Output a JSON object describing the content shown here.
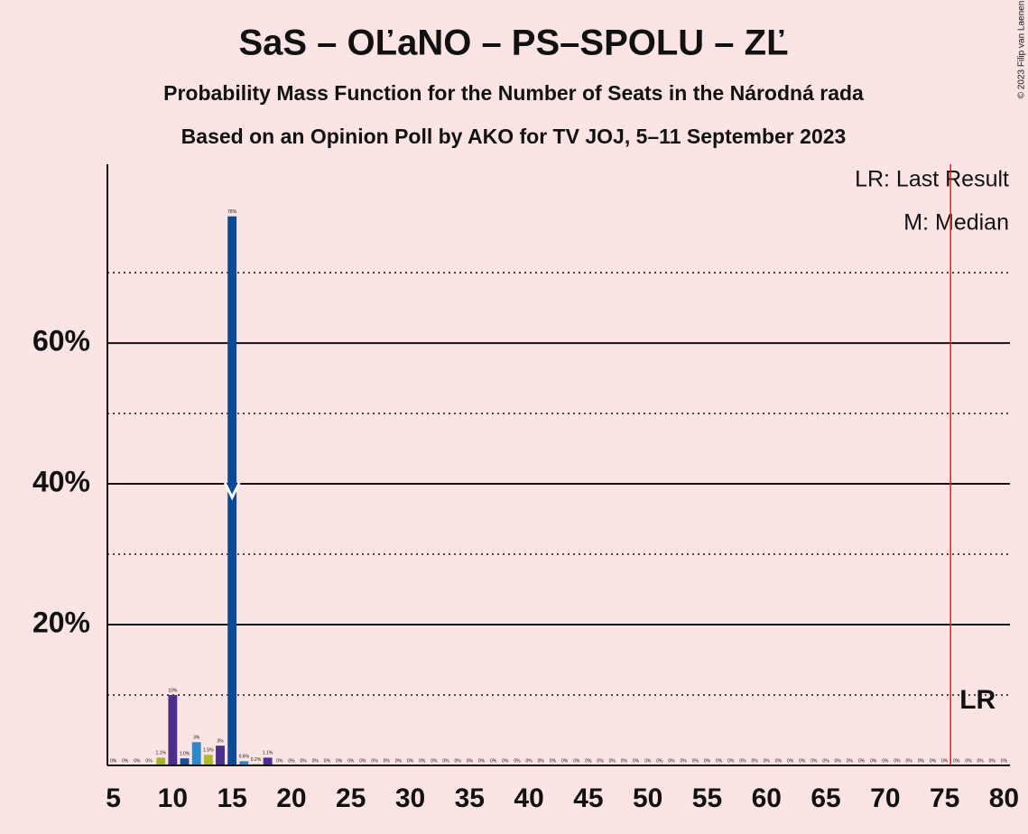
{
  "chart_data": {
    "type": "bar",
    "title": "SaS – OĽaNO – PS–SPOLU – ZĽ",
    "subtitle": "Probability Mass Function for the Number of Seats in the Národná rada",
    "subtitle2": "Based on an Opinion Poll by AKO for TV JOJ, 5–11 September 2023",
    "copyright": "© 2023 Filip van Laenen",
    "legend": [
      "LR: Last Result",
      "M: Median"
    ],
    "lr_label": "LR",
    "x": [
      5,
      6,
      7,
      8,
      9,
      10,
      11,
      12,
      13,
      14,
      15,
      16,
      17,
      18,
      19,
      20,
      21,
      22,
      23,
      24,
      25,
      26,
      27,
      28,
      29,
      30,
      31,
      32,
      33,
      34,
      35,
      36,
      37,
      38,
      39,
      40,
      41,
      42,
      43,
      44,
      45,
      46,
      47,
      48,
      49,
      50,
      51,
      52,
      53,
      54,
      55,
      56,
      57,
      58,
      59,
      60,
      61,
      62,
      63,
      64,
      65,
      66,
      67,
      68,
      69,
      70,
      71,
      72,
      73,
      74,
      75,
      76,
      77,
      78,
      79,
      80
    ],
    "values": [
      0,
      0,
      0,
      0,
      1.1,
      10,
      1.0,
      3.3,
      1.5,
      2.8,
      78,
      0.6,
      0.2,
      1.1,
      0,
      0,
      0,
      0,
      0,
      0,
      0,
      0,
      0,
      0,
      0,
      0,
      0,
      0,
      0,
      0,
      0,
      0,
      0,
      0,
      0,
      0,
      0,
      0,
      0,
      0,
      0,
      0,
      0,
      0,
      0,
      0,
      0,
      0,
      0,
      0,
      0,
      0,
      0,
      0,
      0,
      0,
      0,
      0,
      0,
      0,
      0,
      0,
      0,
      0,
      0,
      0,
      0,
      0,
      0,
      0,
      0,
      0,
      0,
      0,
      0,
      0
    ],
    "value_labels": [
      "0%",
      "0%",
      "0%",
      "0%",
      "1.1%",
      "10%",
      "1.0%",
      "3%",
      "1.5%",
      "3%",
      "78%",
      "0.6%",
      "0.2%",
      "1.1%",
      "0%",
      "0%",
      "0%",
      "0%",
      "0%",
      "0%",
      "0%",
      "0%",
      "0%",
      "0%",
      "0%",
      "0%",
      "0%",
      "0%",
      "0%",
      "0%",
      "0%",
      "0%",
      "0%",
      "0%",
      "0%",
      "0%",
      "0%",
      "0%",
      "0%",
      "0%",
      "0%",
      "0%",
      "0%",
      "0%",
      "0%",
      "0%",
      "0%",
      "0%",
      "0%",
      "0%",
      "0%",
      "0%",
      "0%",
      "0%",
      "0%",
      "0%",
      "0%",
      "0%",
      "0%",
      "0%",
      "0%",
      "0%",
      "0%",
      "0%",
      "0%",
      "0%",
      "0%",
      "0%",
      "0%",
      "0%",
      "0%",
      "0%",
      "0%",
      "0%",
      "0%",
      "0%"
    ],
    "color": "#0d4a94",
    "bar_colors": {
      "9": "#a4b52c",
      "10": "#4b2f8c",
      "11": "#1f4e8c",
      "12": "#2f86c8",
      "13": "#b0b82c",
      "14": "#4b2f8c",
      "16": "#2f86c8",
      "17": "#b0b82c",
      "18": "#4b2f8c"
    },
    "xlim": [
      4.5,
      80.5
    ],
    "xticks": [
      5,
      10,
      15,
      20,
      25,
      30,
      35,
      40,
      45,
      50,
      55,
      60,
      65,
      70,
      75,
      80
    ],
    "ylim": [
      0,
      85.4
    ],
    "yticks": [
      {
        "value": 20,
        "label": "20%"
      },
      {
        "value": 40,
        "label": "40%"
      },
      {
        "value": 60,
        "label": "60%"
      }
    ],
    "minor_gridlines": [
      10,
      30,
      50,
      70
    ],
    "median": 15,
    "last_result": 76,
    "lr_color": "#e02020"
  }
}
